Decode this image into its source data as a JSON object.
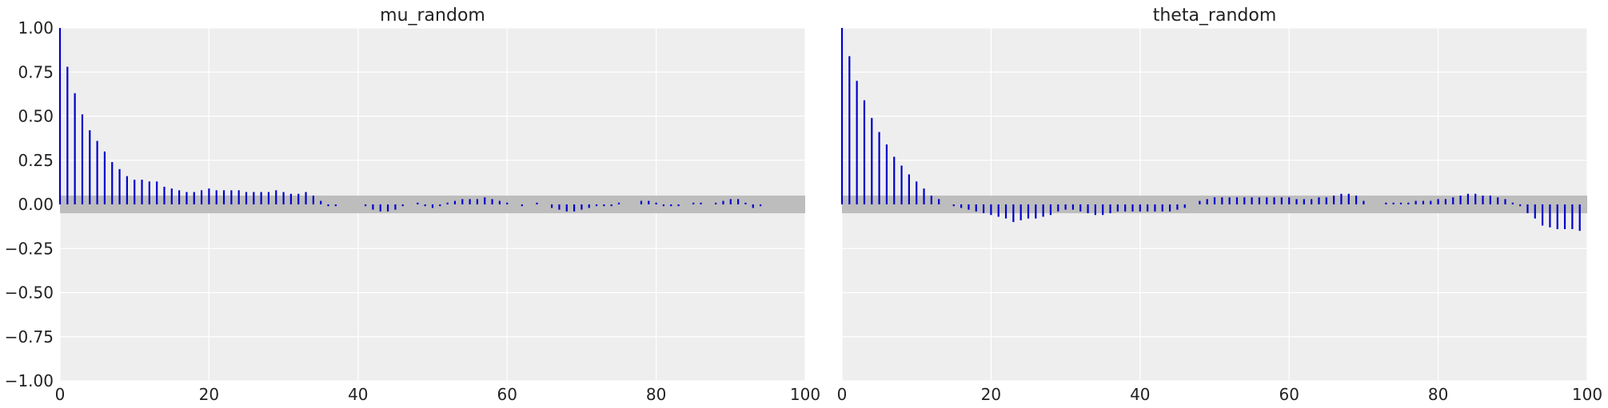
{
  "chart_data": [
    {
      "type": "bar",
      "subtype": "autocorrelation",
      "title": "mu_random",
      "xlabel": "",
      "ylabel": "",
      "xlim": [
        0,
        100
      ],
      "ylim": [
        -1.0,
        1.0
      ],
      "xticks": [
        "0",
        "20",
        "40",
        "60",
        "80",
        "100"
      ],
      "yticks": [
        "−1.00",
        "−0.75",
        "−0.50",
        "−0.25",
        "0.00",
        "0.25",
        "0.50",
        "0.75",
        "1.00"
      ],
      "grid": true,
      "confidence_band": [
        -0.05,
        0.05
      ],
      "lags": [
        0,
        1,
        2,
        3,
        4,
        5,
        6,
        7,
        8,
        9,
        10,
        11,
        12,
        13,
        14,
        15,
        16,
        17,
        18,
        19,
        20,
        21,
        22,
        23,
        24,
        25,
        26,
        27,
        28,
        29,
        30,
        31,
        32,
        33,
        34,
        35,
        36,
        37,
        38,
        39,
        40,
        41,
        42,
        43,
        44,
        45,
        46,
        47,
        48,
        49,
        50,
        51,
        52,
        53,
        54,
        55,
        56,
        57,
        58,
        59,
        60,
        61,
        62,
        63,
        64,
        65,
        66,
        67,
        68,
        69,
        70,
        71,
        72,
        73,
        74,
        75,
        76,
        77,
        78,
        79,
        80,
        81,
        82,
        83,
        84,
        85,
        86,
        87,
        88,
        89,
        90,
        91,
        92,
        93,
        94,
        95,
        96,
        97,
        98,
        99
      ],
      "values": [
        1.0,
        0.78,
        0.63,
        0.51,
        0.42,
        0.36,
        0.3,
        0.24,
        0.2,
        0.16,
        0.14,
        0.14,
        0.13,
        0.13,
        0.1,
        0.09,
        0.08,
        0.07,
        0.07,
        0.08,
        0.09,
        0.08,
        0.08,
        0.08,
        0.08,
        0.07,
        0.07,
        0.07,
        0.07,
        0.08,
        0.07,
        0.06,
        0.06,
        0.07,
        0.05,
        0.02,
        -0.01,
        -0.01,
        0.0,
        0.0,
        0.0,
        -0.01,
        -0.03,
        -0.04,
        -0.04,
        -0.03,
        -0.01,
        0.0,
        0.01,
        -0.01,
        -0.02,
        -0.01,
        0.01,
        0.02,
        0.03,
        0.03,
        0.03,
        0.04,
        0.03,
        0.02,
        0.01,
        0.0,
        -0.01,
        0.0,
        0.01,
        0.0,
        -0.02,
        -0.03,
        -0.04,
        -0.04,
        -0.03,
        -0.02,
        -0.01,
        -0.01,
        -0.01,
        0.01,
        0.0,
        0.0,
        0.02,
        0.02,
        0.01,
        -0.01,
        -0.01,
        -0.01,
        0.0,
        0.01,
        0.01,
        0.0,
        0.01,
        0.02,
        0.03,
        0.03,
        0.01,
        -0.02,
        -0.01,
        0.0,
        0.0,
        0.0,
        0.0,
        0.0
      ]
    },
    {
      "type": "bar",
      "subtype": "autocorrelation",
      "title": "theta_random",
      "xlabel": "",
      "ylabel": "",
      "xlim": [
        0,
        100
      ],
      "ylim": [
        -1.0,
        1.0
      ],
      "xticks": [
        "0",
        "20",
        "40",
        "60",
        "80",
        "100"
      ],
      "yticks": [],
      "grid": true,
      "confidence_band": [
        -0.05,
        0.05
      ],
      "lags": [
        0,
        1,
        2,
        3,
        4,
        5,
        6,
        7,
        8,
        9,
        10,
        11,
        12,
        13,
        14,
        15,
        16,
        17,
        18,
        19,
        20,
        21,
        22,
        23,
        24,
        25,
        26,
        27,
        28,
        29,
        30,
        31,
        32,
        33,
        34,
        35,
        36,
        37,
        38,
        39,
        40,
        41,
        42,
        43,
        44,
        45,
        46,
        47,
        48,
        49,
        50,
        51,
        52,
        53,
        54,
        55,
        56,
        57,
        58,
        59,
        60,
        61,
        62,
        63,
        64,
        65,
        66,
        67,
        68,
        69,
        70,
        71,
        72,
        73,
        74,
        75,
        76,
        77,
        78,
        79,
        80,
        81,
        82,
        83,
        84,
        85,
        86,
        87,
        88,
        89,
        90,
        91,
        92,
        93,
        94,
        95,
        96,
        97,
        98,
        99
      ],
      "values": [
        1.0,
        0.84,
        0.7,
        0.59,
        0.49,
        0.41,
        0.34,
        0.27,
        0.22,
        0.17,
        0.13,
        0.09,
        0.05,
        0.03,
        0.0,
        -0.01,
        -0.02,
        -0.03,
        -0.04,
        -0.05,
        -0.06,
        -0.07,
        -0.08,
        -0.1,
        -0.09,
        -0.08,
        -0.08,
        -0.07,
        -0.06,
        -0.04,
        -0.03,
        -0.03,
        -0.04,
        -0.05,
        -0.06,
        -0.06,
        -0.05,
        -0.04,
        -0.04,
        -0.04,
        -0.04,
        -0.04,
        -0.04,
        -0.04,
        -0.04,
        -0.03,
        -0.02,
        0.0,
        0.02,
        0.03,
        0.04,
        0.04,
        0.04,
        0.04,
        0.04,
        0.04,
        0.04,
        0.04,
        0.04,
        0.04,
        0.04,
        0.03,
        0.03,
        0.03,
        0.04,
        0.04,
        0.05,
        0.06,
        0.06,
        0.05,
        0.02,
        0.0,
        0.0,
        0.01,
        0.01,
        0.01,
        0.01,
        0.02,
        0.02,
        0.02,
        0.03,
        0.03,
        0.04,
        0.05,
        0.06,
        0.06,
        0.05,
        0.05,
        0.04,
        0.03,
        0.01,
        -0.01,
        -0.05,
        -0.08,
        -0.12,
        -0.13,
        -0.14,
        -0.14,
        -0.14,
        -0.15
      ]
    }
  ]
}
